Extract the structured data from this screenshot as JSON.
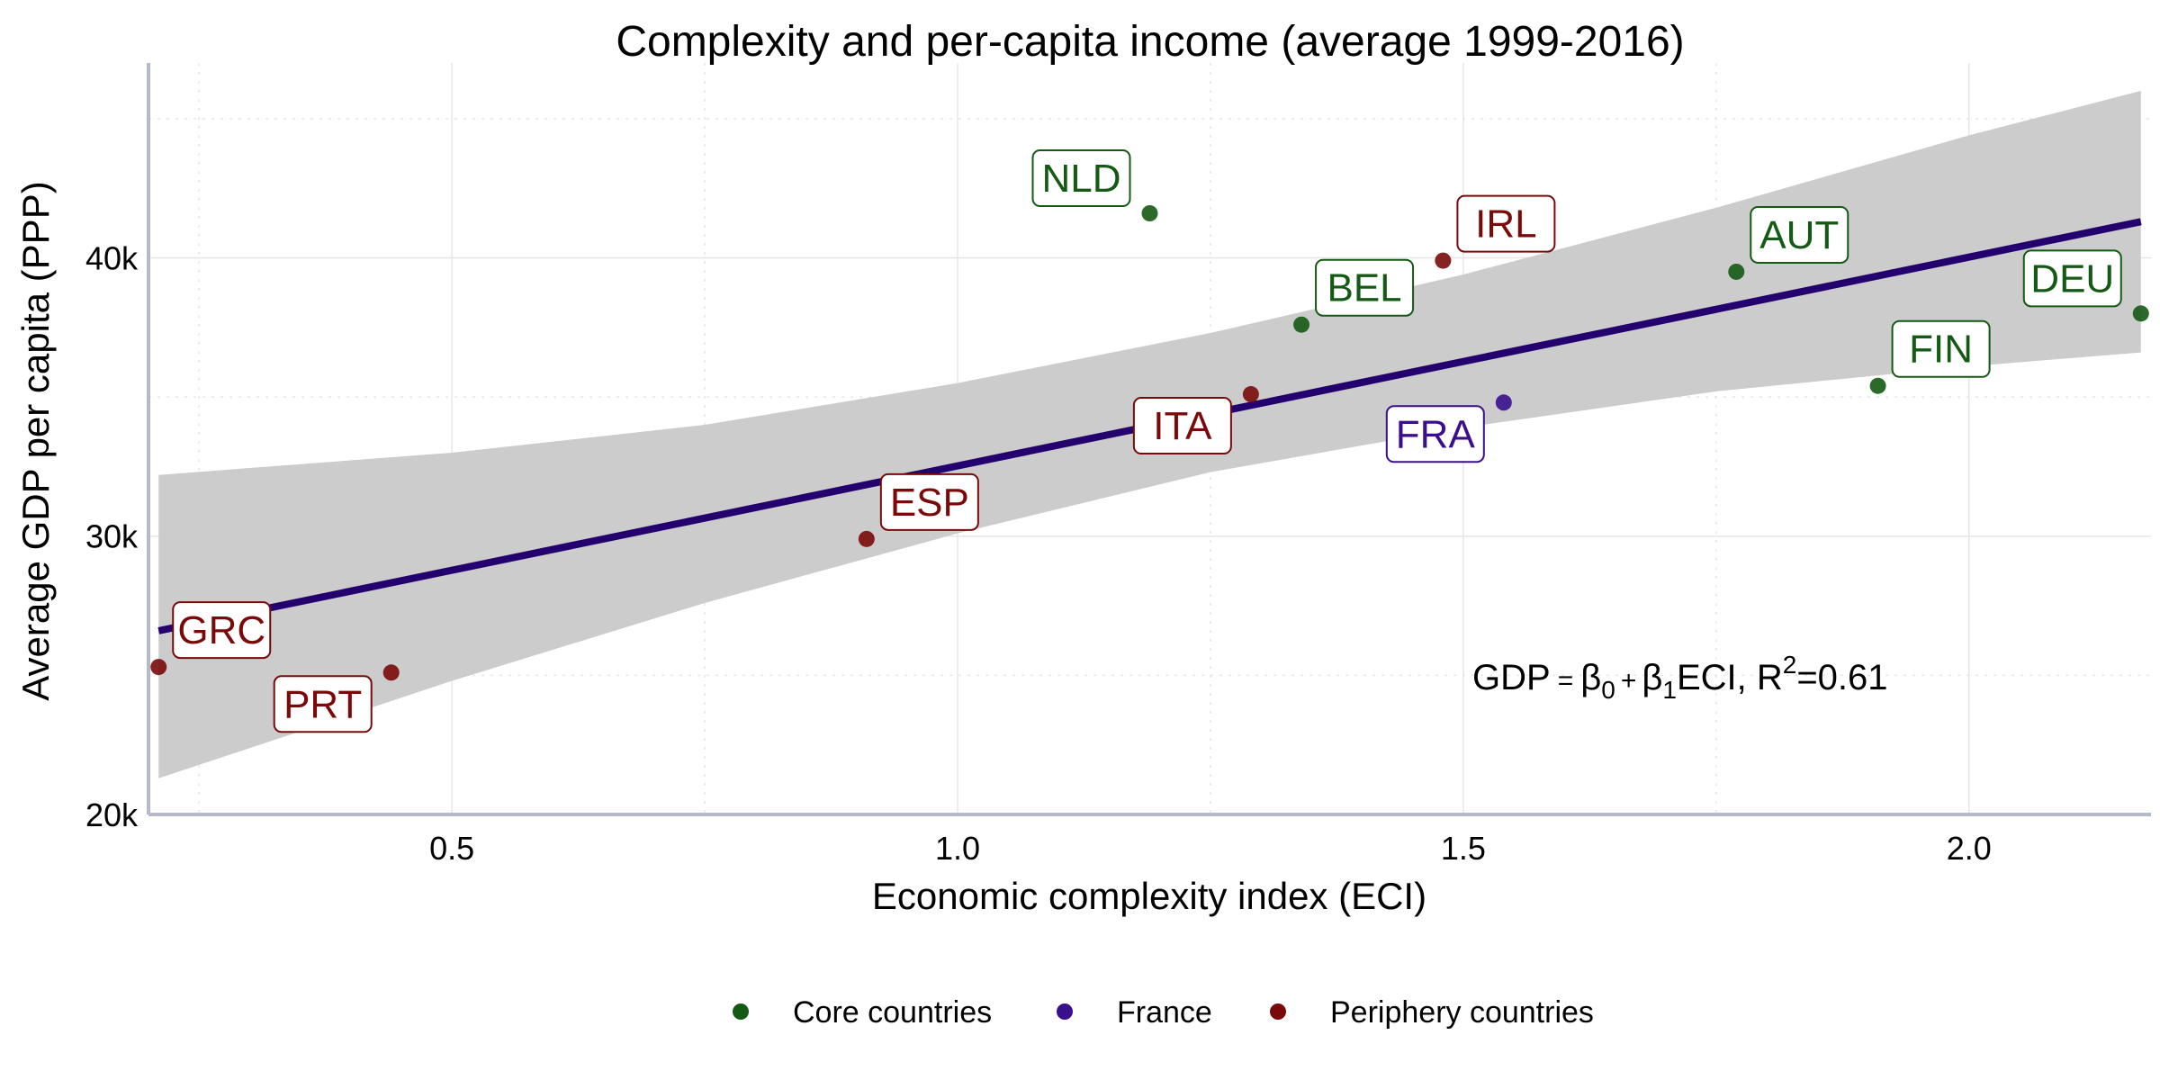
{
  "chart_data": {
    "type": "scatter",
    "title": "Complexity and per-capita income (average 1999-2016)",
    "xlabel": "Economic complexity index (ECI)",
    "ylabel": "Average GDP per capita (PPP)",
    "xlim": [
      0.2,
      2.18
    ],
    "ylim": [
      20000,
      47000
    ],
    "x_ticks": [
      0.5,
      1.0,
      1.5,
      2.0
    ],
    "x_tick_labels": [
      "0.5",
      "1.0",
      "1.5",
      "2.0"
    ],
    "y_ticks": [
      20000,
      30000,
      40000
    ],
    "y_tick_labels": [
      "20k",
      "30k",
      "40k"
    ],
    "grid": true,
    "legend_position": "bottom",
    "groups": [
      {
        "name": "Core countries",
        "color": "#145a14"
      },
      {
        "name": "France",
        "color": "#3a0f8c"
      },
      {
        "name": "Periphery countries",
        "color": "#7a0a0a"
      }
    ],
    "points": [
      {
        "label": "NLD",
        "x": 1.19,
        "y": 41600,
        "group": "Core countries",
        "label_dir": "upper-left"
      },
      {
        "label": "BEL",
        "x": 1.34,
        "y": 37600,
        "group": "Core countries",
        "label_dir": "upper-right"
      },
      {
        "label": "AUT",
        "x": 1.77,
        "y": 39500,
        "group": "Core countries",
        "label_dir": "upper-right"
      },
      {
        "label": "FIN",
        "x": 1.91,
        "y": 35400,
        "group": "Core countries",
        "label_dir": "upper-right"
      },
      {
        "label": "DEU",
        "x": 2.17,
        "y": 38000,
        "group": "Core countries",
        "label_dir": "upper-left"
      },
      {
        "label": "FRA",
        "x": 1.54,
        "y": 34800,
        "group": "France",
        "label_dir": "lower-left"
      },
      {
        "label": "IRL",
        "x": 1.48,
        "y": 39900,
        "group": "Periphery countries",
        "label_dir": "upper-right"
      },
      {
        "label": "ITA",
        "x": 1.29,
        "y": 35100,
        "group": "Periphery countries",
        "label_dir": "lower-left"
      },
      {
        "label": "ESP",
        "x": 0.91,
        "y": 29900,
        "group": "Periphery countries",
        "label_dir": "upper-right"
      },
      {
        "label": "GRC",
        "x": 0.21,
        "y": 25300,
        "group": "Periphery countries",
        "label_dir": "upper-right"
      },
      {
        "label": "PRT",
        "x": 0.44,
        "y": 25100,
        "group": "Periphery countries",
        "label_dir": "lower-left"
      }
    ],
    "fit_line": {
      "x": [
        0.21,
        2.17
      ],
      "y": [
        26600,
        41300
      ],
      "color": "#24006e"
    },
    "confidence_band": {
      "x": [
        0.21,
        0.5,
        0.75,
        1.0,
        1.25,
        1.5,
        1.75,
        2.0,
        2.17
      ],
      "upper": [
        32200,
        33000,
        34000,
        35500,
        37300,
        39400,
        41800,
        44400,
        46000
      ],
      "lower": [
        21300,
        24800,
        27600,
        30100,
        32300,
        33900,
        35200,
        36100,
        36600
      ],
      "color": "#cccccc"
    },
    "annotation": {
      "gdp": "GDP",
      "eq": "=",
      "beta": "β",
      "sub0": "0",
      "plus": "+",
      "sub1": "1",
      "eci": "ECI, R",
      "sup2": "2",
      "r2": "=0.61"
    }
  }
}
